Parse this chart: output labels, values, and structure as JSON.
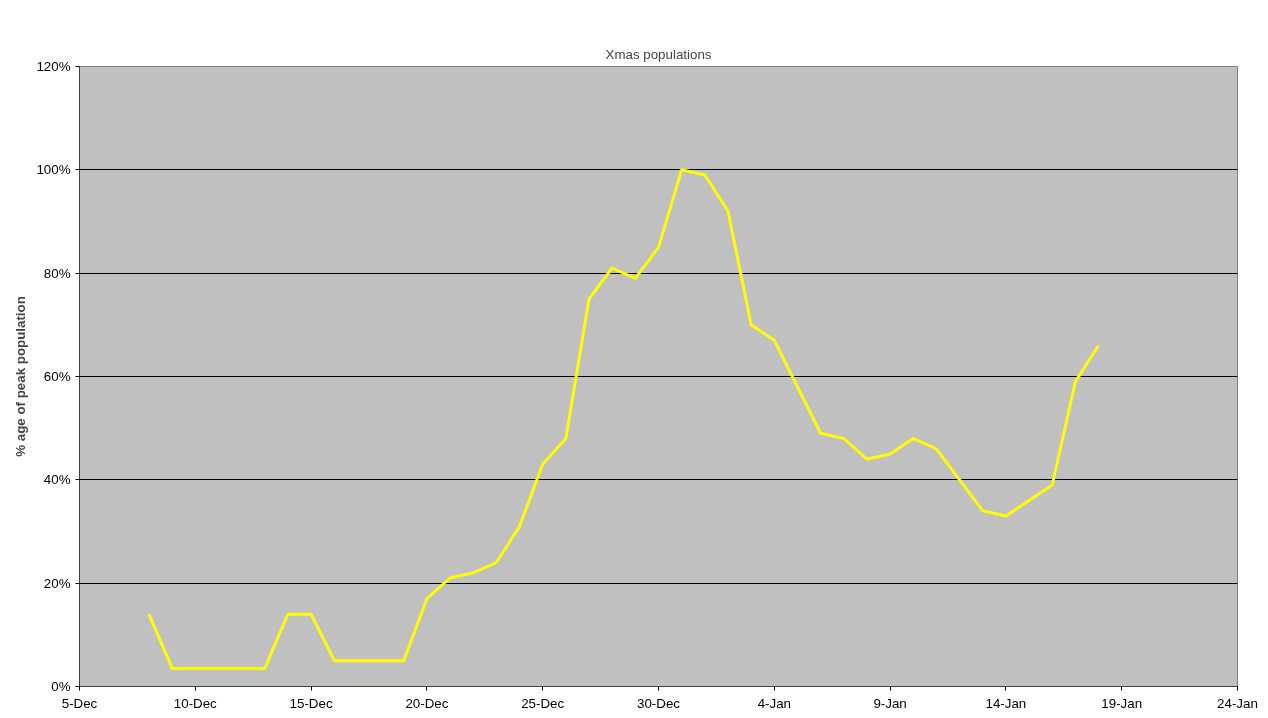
{
  "chart_data": {
    "type": "line",
    "title": "Xmas populations",
    "ylabel": "% age of peak population",
    "categories": [
      "5-Dec",
      null,
      null,
      null,
      null,
      "10-Dec",
      null,
      null,
      null,
      null,
      "15-Dec",
      null,
      null,
      null,
      null,
      "20-Dec",
      null,
      null,
      null,
      null,
      "25-Dec",
      null,
      null,
      null,
      null,
      "30-Dec",
      null,
      null,
      null,
      null,
      "4-Jan",
      null,
      null,
      null,
      null,
      "9-Jan",
      null,
      null,
      null,
      null,
      "14-Jan",
      null,
      null,
      null,
      null,
      "19-Jan",
      null,
      null,
      null,
      null,
      "24-Jan"
    ],
    "series": [
      {
        "color": "#ffff00",
        "values": [
          null,
          null,
          null,
          14,
          3.5,
          3.5,
          3.5,
          3.5,
          3.5,
          14,
          14,
          5,
          5,
          5,
          5,
          17,
          21,
          22,
          24,
          31,
          43,
          48,
          75,
          81,
          79,
          85,
          100,
          99,
          92,
          70,
          67,
          58,
          49,
          48,
          44,
          45,
          48,
          46,
          40,
          34,
          33,
          36,
          39,
          59,
          66,
          null,
          null,
          null,
          null,
          null,
          null
        ]
      }
    ],
    "ylim": [
      0,
      120
    ],
    "yticks": [
      {
        "value": 0,
        "label": "0%"
      },
      {
        "value": 20,
        "label": "20%"
      },
      {
        "value": 40,
        "label": "40%"
      },
      {
        "value": 60,
        "label": "60%"
      },
      {
        "value": 80,
        "label": "80%"
      },
      {
        "value": 100,
        "label": "100%"
      },
      {
        "value": 120,
        "label": "120%"
      }
    ],
    "grid": "y",
    "marker": "none",
    "line_style": "solid"
  }
}
